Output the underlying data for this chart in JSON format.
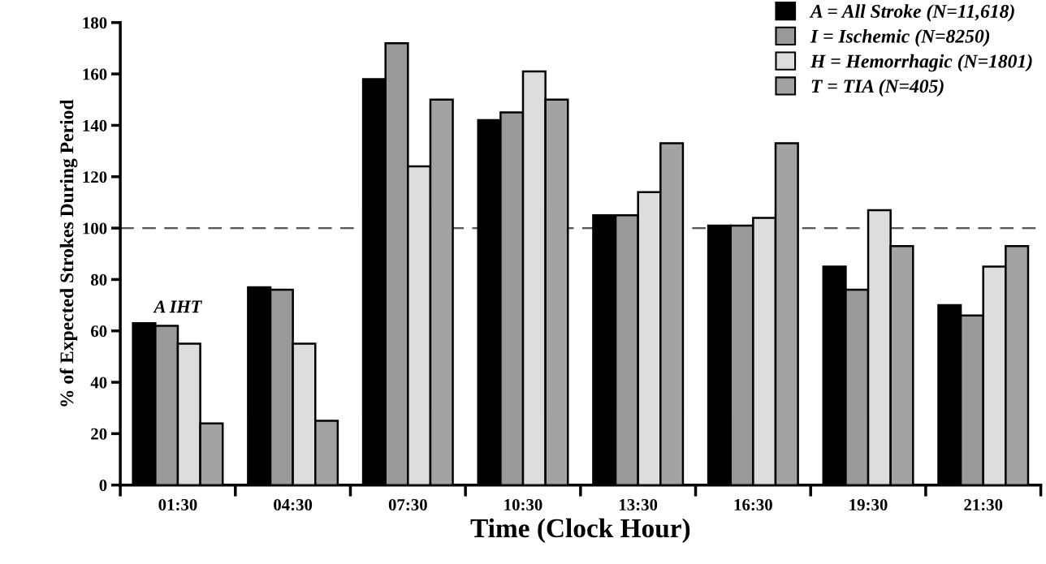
{
  "chart_data": {
    "type": "bar",
    "xlabel": "Time (Clock Hour)",
    "ylabel": "% of Expected Strokes During Period",
    "categories": [
      "01:30",
      "04:30",
      "07:30",
      "10:30",
      "13:30",
      "16:30",
      "19:30",
      "21:30"
    ],
    "series": [
      {
        "name": "A = All Stroke (N=11,618)",
        "color": "#000000",
        "values": [
          63,
          77,
          158,
          142,
          105,
          101,
          85,
          70
        ]
      },
      {
        "name": "I = Ischemic (N=8250)",
        "color": "#999999",
        "values": [
          62,
          76,
          172,
          145,
          105,
          101,
          76,
          66
        ]
      },
      {
        "name": "H = Hemorrhagic (N=1801)",
        "color": "#dddddd",
        "values": [
          55,
          55,
          124,
          161,
          114,
          104,
          107,
          85
        ]
      },
      {
        "name": "T = TIA (N=405)",
        "color": "#a3a3a3",
        "values": [
          24,
          25,
          150,
          150,
          133,
          133,
          93,
          93
        ]
      }
    ],
    "ylim": [
      0,
      180
    ],
    "yticks": [
      0,
      20,
      40,
      60,
      80,
      100,
      120,
      140,
      160,
      180
    ],
    "ref_lines": [
      {
        "axis": "y",
        "value": 100,
        "color": "#555555",
        "line_style": "dashed"
      }
    ],
    "annotations": [
      "A IHT"
    ],
    "legend": "top right",
    "grid": false
  }
}
